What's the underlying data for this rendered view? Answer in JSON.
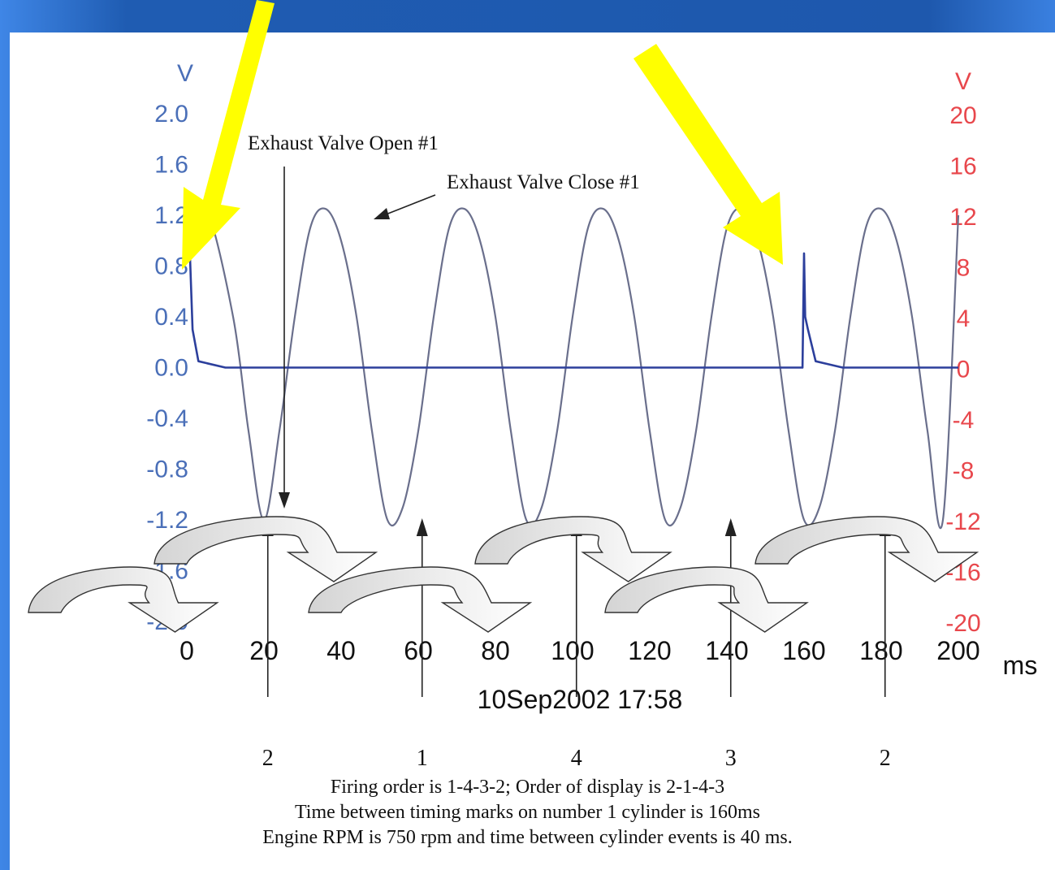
{
  "chart_data": {
    "type": "line",
    "left_axis": {
      "unit": "V",
      "ticks": [
        "2.0",
        "1.6",
        "1.2",
        "0.8",
        "0.4",
        "0.0",
        "-0.4",
        "-0.8",
        "-1.2",
        "-1.6",
        "-2.0"
      ],
      "ylim": [
        -2.0,
        2.0
      ],
      "color": "#4a6fb8"
    },
    "right_axis": {
      "unit": "V",
      "ticks": [
        "20",
        "16",
        "12",
        "8",
        "4",
        "0",
        "-4",
        "-8",
        "-12",
        "-16",
        "-20"
      ],
      "ylim": [
        -20,
        20
      ],
      "color": "#e8474c"
    },
    "x_axis": {
      "unit": "ms",
      "ticks": [
        "0",
        "20",
        "40",
        "60",
        "80",
        "100",
        "120",
        "140",
        "160",
        "180",
        "200"
      ],
      "xlim": [
        0,
        200
      ]
    },
    "timestamp": "10Sep2002  17:58",
    "series": [
      {
        "color": "#6a6f8c",
        "axis": "right",
        "x": [
          0,
          5,
          12,
          16,
          20,
          24,
          28,
          32,
          36,
          40,
          44,
          48,
          52,
          56,
          60,
          64,
          68,
          72,
          76,
          80,
          84,
          88,
          92,
          96,
          100,
          104,
          108,
          112,
          116,
          120,
          124,
          128,
          132,
          136,
          140,
          144,
          148,
          152,
          156,
          160,
          164,
          168,
          172,
          176,
          180,
          184,
          188,
          192,
          196,
          200
        ],
        "y": [
          10,
          12.5,
          4,
          -5,
          -12,
          -5,
          4,
          11,
          12.5,
          10,
          4,
          -5,
          -12,
          -11,
          -5,
          4,
          11,
          12.5,
          10,
          4,
          -5,
          -12,
          -11,
          -5,
          4,
          11,
          12.5,
          10,
          4,
          -5,
          -12,
          -11,
          -5,
          4,
          11,
          12.5,
          10,
          4,
          -5,
          -12,
          -11,
          -5,
          4,
          11,
          12.5,
          10,
          4,
          -5,
          -12,
          12
        ]
      },
      {
        "color": "#2c3f9c",
        "axis": "right",
        "x": [
          0,
          0.8,
          1.5,
          3,
          10,
          40,
          80,
          120,
          159.6,
          160,
          160.3,
          161,
          163,
          170,
          200
        ],
        "y": [
          9,
          9,
          3,
          0.5,
          0,
          0,
          0,
          0,
          0,
          9,
          4,
          3,
          0.5,
          0,
          0
        ]
      }
    ],
    "annotations": [
      {
        "text": "Exhaust Valve Open #1",
        "x": 21
      },
      {
        "text": "Exhaust Valve Close #1",
        "x": 43
      }
    ],
    "cylinder_markers": [
      {
        "label": "2",
        "x": 21
      },
      {
        "label": "1",
        "x": 61
      },
      {
        "label": "4",
        "x": 101
      },
      {
        "label": "3",
        "x": 141
      },
      {
        "label": "2",
        "x": 181
      }
    ]
  },
  "notes": [
    "Firing order is 1-4-3-2; Order of display is 2-1-4-3",
    "Time between timing marks on number 1 cylinder is 160ms",
    "Engine RPM is 750 rpm and time between cylinder events is 40 ms."
  ],
  "colors": {
    "highlight_arrow": "#ffff00",
    "background": "#2060b4"
  }
}
